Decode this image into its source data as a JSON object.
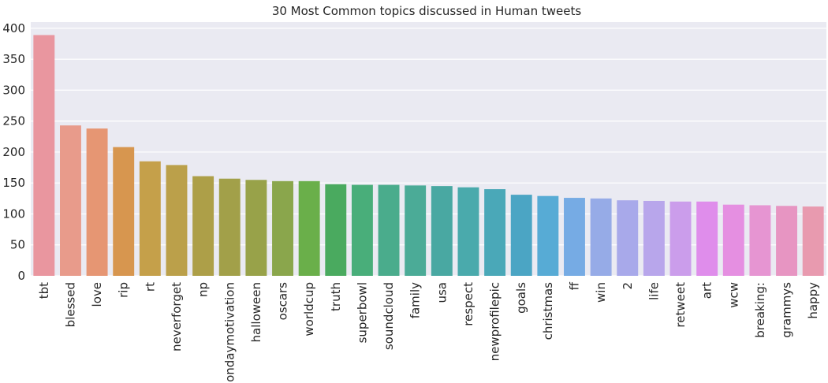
{
  "chart_data": {
    "type": "bar",
    "title": "30 Most Common topics discussed in Human tweets",
    "xlabel": "",
    "ylabel": "",
    "ylim": [
      0,
      410
    ],
    "yticks": [
      0,
      50,
      100,
      150,
      200,
      250,
      300,
      350,
      400
    ],
    "grid": true,
    "background": "#eaeaf2",
    "categories": [
      "tbt",
      "blessed",
      "love",
      "rip",
      "rt",
      "neverforget",
      "np",
      "mondaymotivation",
      "halloween",
      "oscars",
      "worldcup",
      "truth",
      "superbowl",
      "soundcloud",
      "family",
      "usa",
      "respect",
      "newprofilepic",
      "goals",
      "christmas",
      "ff",
      "win",
      "2",
      "life",
      "retweet",
      "art",
      "wcw",
      "breaking:",
      "grammys",
      "happy"
    ],
    "values": [
      389,
      243,
      238,
      208,
      185,
      179,
      161,
      157,
      155,
      153,
      153,
      148,
      147,
      147,
      146,
      145,
      143,
      140,
      131,
      129,
      126,
      125,
      122,
      121,
      120,
      120,
      115,
      114,
      113,
      112
    ],
    "colors": [
      "#e9969f",
      "#e89b8b",
      "#e69673",
      "#d7964f",
      "#c5a04a",
      "#bba04a",
      "#ad9f48",
      "#a2a049",
      "#98a249",
      "#8aa64c",
      "#6aaf4a",
      "#4aaa5f",
      "#49ae7a",
      "#4aac8c",
      "#4bab97",
      "#49a8a2",
      "#4aaaac",
      "#4aa8b8",
      "#4ba5c4",
      "#57abd5",
      "#76abe4",
      "#96abe7",
      "#a8a9ea",
      "#b8a6eb",
      "#cb9deb",
      "#df8deb",
      "#e58fe1",
      "#e695d2",
      "#e795c2",
      "#e89aaf"
    ]
  }
}
